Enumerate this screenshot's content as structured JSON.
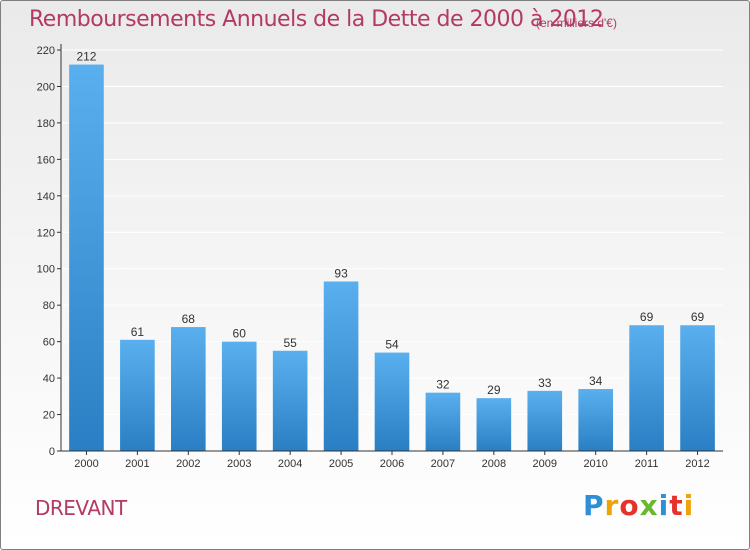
{
  "header": {
    "title": "Remboursements Annuels de la Dette de 2000 à 2012",
    "subtitle": "(en milliers d'€)"
  },
  "footer": {
    "city": "DREVANT",
    "logo": {
      "letters": [
        "P",
        "r",
        "o",
        "x",
        "i",
        "t",
        "i"
      ],
      "colors": [
        "#2e8fd6",
        "#f0a20a",
        "#e7322c",
        "#6ab82e",
        "#2e8fd6",
        "#e7322c",
        "#f0a20a"
      ]
    }
  },
  "colors": {
    "bar_light": "#5ab0ee",
    "bar_dark": "#2a7fc4",
    "title": "#b23a63",
    "gridline": "#ffffff"
  },
  "chart_data": {
    "type": "bar",
    "categories": [
      "2000",
      "2001",
      "2002",
      "2003",
      "2004",
      "2005",
      "2006",
      "2007",
      "2008",
      "2009",
      "2010",
      "2011",
      "2012"
    ],
    "values": [
      212,
      61,
      68,
      60,
      55,
      93,
      54,
      32,
      29,
      33,
      34,
      69,
      69
    ],
    "value_labels": [
      "212",
      "61",
      "68",
      "60",
      "55",
      "93",
      "54",
      "32",
      "29",
      "33",
      "34",
      "69",
      "69"
    ],
    "ylim": [
      0,
      220
    ],
    "yticks": [
      0,
      20,
      40,
      60,
      80,
      100,
      120,
      140,
      160,
      180,
      200,
      220
    ],
    "grid": true
  }
}
